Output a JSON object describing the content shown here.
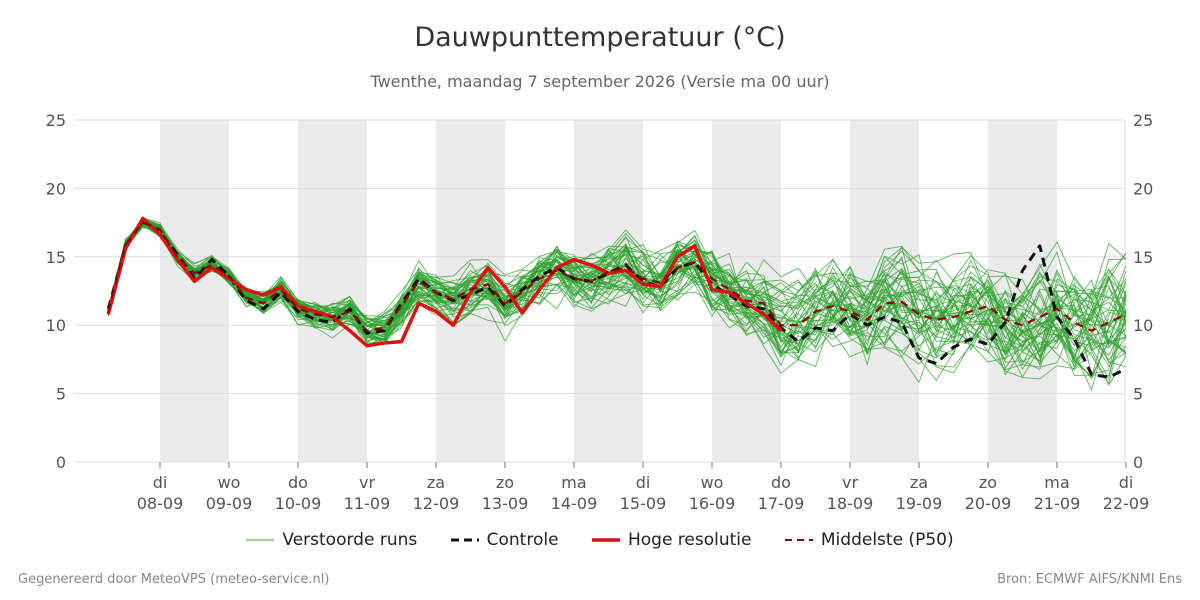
{
  "title": "Dauwpunttemperatuur (°C)",
  "subtitle": "Twenthe, maandag  7 september 2026 (Versie ma 00 uur)",
  "legend": {
    "ensemble": "Verstoorde runs",
    "control": "Controle",
    "hires": "Hoge resolutie",
    "median": "Middelste (P50)"
  },
  "footer": {
    "left": "Gegenereerd door MeteoVPS (meteo-service.nl)",
    "right": "Bron: ECMWF AIFS/KNMI Ens"
  },
  "colors": {
    "ensemble": "#2ca02c",
    "control": "#111111",
    "hires": "#dd1111",
    "median": "#8b0000",
    "weekend_band": "#ebebeb",
    "grid": "#dddddd"
  },
  "chart_data": {
    "type": "line",
    "title": "Dauwpunttemperatuur (°C)",
    "subtitle": "Twenthe, maandag  7 september 2026 (Versie ma 00 uur)",
    "ylim": [
      0,
      25
    ],
    "yticks": [
      0,
      5,
      10,
      15,
      20,
      25
    ],
    "xlim": [
      -0.75,
      14
    ],
    "x_unit": "days since 08-09",
    "xticks": [
      {
        "day": "di",
        "date": "08-09"
      },
      {
        "day": "wo",
        "date": "09-09"
      },
      {
        "day": "do",
        "date": "10-09"
      },
      {
        "day": "vr",
        "date": "11-09"
      },
      {
        "day": "za",
        "date": "12-09"
      },
      {
        "day": "zo",
        "date": "13-09"
      },
      {
        "day": "ma",
        "date": "14-09"
      },
      {
        "day": "di",
        "date": "15-09"
      },
      {
        "day": "wo",
        "date": "16-09"
      },
      {
        "day": "do",
        "date": "17-09"
      },
      {
        "day": "vr",
        "date": "18-09"
      },
      {
        "day": "za",
        "date": "19-09"
      },
      {
        "day": "zo",
        "date": "20-09"
      },
      {
        "day": "ma",
        "date": "21-09"
      },
      {
        "day": "di",
        "date": "22-09"
      }
    ],
    "shaded_days": [
      0,
      2,
      4,
      6,
      8,
      10,
      12
    ],
    "ensemble_members": 50,
    "series": [
      {
        "name": "Controle",
        "style": "dashed",
        "x": [
          -0.75,
          -0.5,
          -0.25,
          0,
          0.25,
          0.5,
          0.75,
          1,
          1.25,
          1.5,
          1.75,
          2,
          2.25,
          2.5,
          2.75,
          3,
          3.25,
          3.5,
          3.75,
          4,
          4.25,
          4.5,
          4.75,
          5,
          5.25,
          5.5,
          5.75,
          6,
          6.25,
          6.5,
          6.75,
          7,
          7.25,
          7.5,
          7.75,
          8,
          8.25,
          8.5,
          8.75,
          9,
          9.25,
          9.5,
          9.75,
          10,
          10.25,
          10.5,
          10.75,
          11,
          11.25,
          11.5,
          11.75,
          12,
          12.25,
          12.5,
          12.75,
          13,
          13.25,
          13.5,
          13.75,
          14
        ],
        "values": [
          11.2,
          15.8,
          17.6,
          16.8,
          15.2,
          13.4,
          14.8,
          13.6,
          11.8,
          11.2,
          12.4,
          11.0,
          10.4,
          10.2,
          11.2,
          9.4,
          9.6,
          11.6,
          13.4,
          12.4,
          11.8,
          12.2,
          12.8,
          11.4,
          12.6,
          13.6,
          14.2,
          13.4,
          13.2,
          13.8,
          14.4,
          13.2,
          12.8,
          14.2,
          14.6,
          13.0,
          12.2,
          11.4,
          11.2,
          9.8,
          8.8,
          9.8,
          9.6,
          10.8,
          10.0,
          10.6,
          10.2,
          7.6,
          7.2,
          8.4,
          9.0,
          8.6,
          10.2,
          14.0,
          15.8,
          10.6,
          9.0,
          6.4,
          6.2,
          6.8
        ]
      },
      {
        "name": "Hoge resolutie",
        "style": "solid",
        "x": [
          -0.75,
          -0.5,
          -0.25,
          0,
          0.25,
          0.5,
          0.75,
          1,
          1.25,
          1.5,
          1.75,
          2,
          2.25,
          2.5,
          2.75,
          3,
          3.25,
          3.5,
          3.75,
          4,
          4.25,
          4.5,
          4.75,
          5,
          5.25,
          5.5,
          5.75,
          6,
          6.25,
          6.5,
          6.75,
          7,
          7.25,
          7.5,
          7.75,
          8,
          8.25,
          8.5,
          8.75,
          9
        ],
        "values": [
          10.8,
          15.6,
          17.8,
          16.6,
          14.8,
          13.2,
          14.2,
          13.4,
          12.6,
          12.2,
          12.8,
          11.4,
          11.0,
          10.6,
          9.6,
          8.5,
          8.7,
          8.8,
          11.6,
          11.0,
          10.0,
          12.4,
          14.2,
          12.8,
          10.9,
          12.6,
          14.2,
          14.8,
          14.4,
          13.8,
          14.0,
          13.0,
          12.8,
          15.0,
          15.8,
          12.6,
          12.4,
          11.6,
          10.8,
          9.6
        ]
      },
      {
        "name": "Middelste (P50)",
        "style": "dashed",
        "x": [
          -0.75,
          -0.5,
          -0.25,
          0,
          0.25,
          0.5,
          0.75,
          1,
          1.25,
          1.5,
          1.75,
          2,
          2.25,
          2.5,
          2.75,
          3,
          3.25,
          3.5,
          3.75,
          4,
          4.25,
          4.5,
          4.75,
          5,
          5.25,
          5.5,
          5.75,
          6,
          6.25,
          6.5,
          6.75,
          7,
          7.25,
          7.5,
          7.75,
          8,
          8.25,
          8.5,
          8.75,
          9,
          9.25,
          9.5,
          9.75,
          10,
          10.25,
          10.5,
          10.75,
          11,
          11.25,
          11.5,
          11.75,
          12,
          12.25,
          12.5,
          12.75,
          13,
          13.25,
          13.5,
          13.75,
          14
        ],
        "values": [
          11.0,
          15.9,
          17.5,
          17.0,
          15.0,
          13.8,
          14.4,
          13.6,
          12.0,
          11.6,
          12.6,
          11.2,
          10.8,
          10.6,
          11.0,
          9.6,
          9.8,
          11.4,
          13.2,
          12.4,
          11.9,
          12.6,
          13.0,
          11.6,
          12.4,
          13.4,
          14.0,
          13.4,
          13.2,
          13.9,
          14.2,
          13.4,
          13.1,
          14.2,
          14.6,
          13.4,
          12.6,
          11.8,
          11.6,
          10.0,
          10.0,
          11.0,
          11.4,
          11.0,
          10.4,
          11.6,
          11.7,
          10.8,
          10.4,
          10.6,
          11.0,
          11.4,
          10.4,
          10.0,
          10.6,
          11.2,
          10.2,
          9.6,
          10.2,
          10.8
        ]
      }
    ],
    "legend_position": "bottom"
  }
}
